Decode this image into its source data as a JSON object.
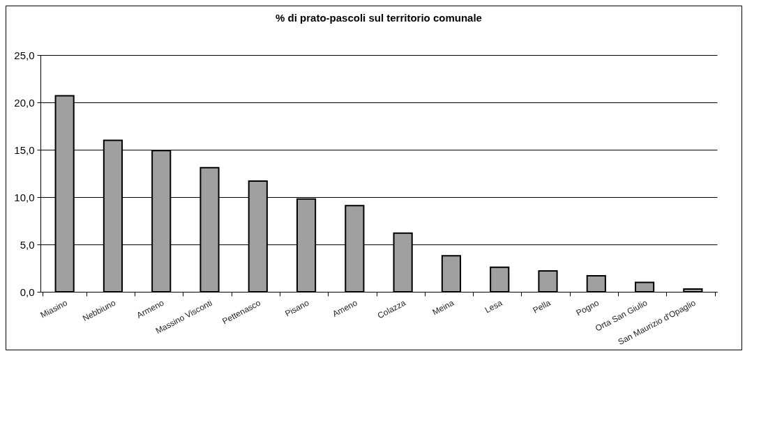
{
  "chart_data": {
    "type": "bar",
    "title": "% di prato-pascoli sul territorio comunale",
    "categories": [
      "Miasino",
      "Nebbiuno",
      "Armeno",
      "Massino Visconti",
      "Pettenasco",
      "Pisano",
      "Ameno",
      "Colazza",
      "Meina",
      "Lesa",
      "Pella",
      "Pogno",
      "Orta San Giulio",
      "San Maurizio d'Opaglio"
    ],
    "values": [
      20.7,
      16.0,
      14.9,
      13.1,
      11.7,
      9.8,
      9.1,
      6.2,
      3.8,
      2.6,
      2.2,
      1.7,
      1.0,
      0.3
    ],
    "color": "#a0a0a0",
    "ylim": [
      0,
      25
    ],
    "yticks": [
      {
        "value": 0,
        "label": "0,0"
      },
      {
        "value": 5,
        "label": "5,0"
      },
      {
        "value": 10,
        "label": "10,0"
      },
      {
        "value": 15,
        "label": "15,0"
      },
      {
        "value": 20,
        "label": "20,0"
      },
      {
        "value": 25,
        "label": "25,0"
      }
    ],
    "grid": "y"
  }
}
